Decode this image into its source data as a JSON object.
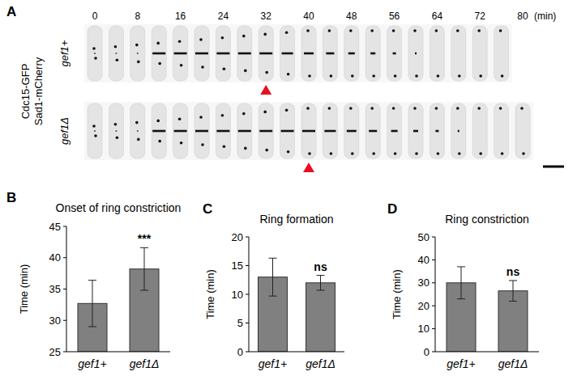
{
  "panel_labels": [
    "A",
    "B",
    "C",
    "D"
  ],
  "panel_a": {
    "channel": [
      "Cdc15-GFP",
      "Sad1-mCherry"
    ],
    "time_ticks": [
      0,
      8,
      16,
      24,
      32,
      40,
      48,
      56,
      64,
      72,
      80
    ],
    "time_unit": "(min)",
    "rows": [
      {
        "label": "gef1+",
        "frames_end": 76,
        "constriction_onset": 32
      },
      {
        "label": "gef1Δ",
        "frames_end": 80,
        "constriction_onset": 40
      }
    ]
  },
  "chart_data": [
    {
      "type": "bar",
      "title": "Onset of ring constriction",
      "y_label": "Time (min)",
      "categories": [
        "gef1+",
        "gef1Δ"
      ],
      "values": [
        32.7,
        38.2
      ],
      "errors": [
        3.7,
        3.4
      ],
      "color": "#808080",
      "ylim": [
        25,
        45
      ],
      "yticks": [
        25,
        30,
        35,
        40,
        45
      ],
      "annotation": "***"
    },
    {
      "type": "bar",
      "title": "Ring formation",
      "y_label": "Time (min)",
      "categories": [
        "gef1+",
        "gef1Δ"
      ],
      "values": [
        13.0,
        12.0
      ],
      "errors": [
        3.3,
        1.3
      ],
      "color": "#808080",
      "ylim": [
        0,
        20
      ],
      "yticks": [
        0,
        5,
        10,
        15,
        20
      ],
      "annotation": "ns"
    },
    {
      "type": "bar",
      "title": "Ring constriction",
      "y_label": "Time (min)",
      "categories": [
        "gef1+",
        "gef1Δ"
      ],
      "values": [
        30.0,
        26.5
      ],
      "errors": [
        7.0,
        4.5
      ],
      "color": "#808080",
      "ylim": [
        0,
        50
      ],
      "yticks": [
        0,
        10,
        20,
        30,
        40,
        50
      ],
      "annotation": "ns"
    }
  ]
}
